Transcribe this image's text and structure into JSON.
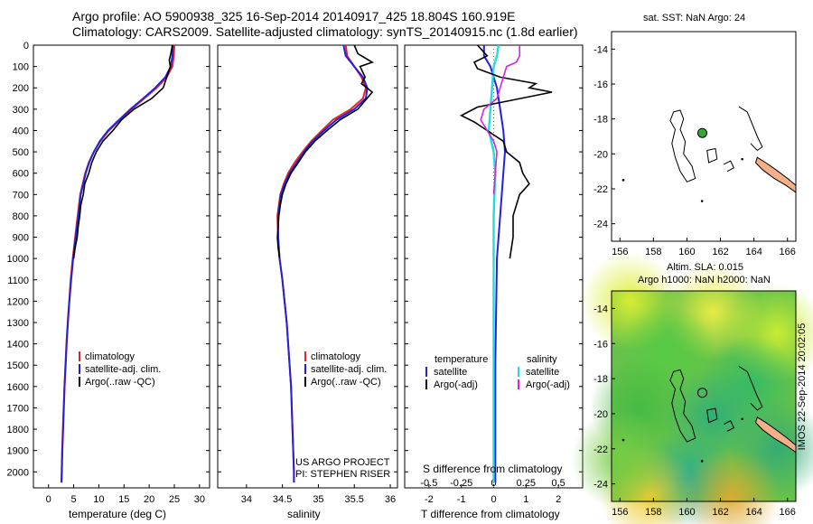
{
  "header": {
    "line1": "Argo profile: AO 5900938_325 16-Sep-2014 20140917_425 18.804S 160.919E",
    "line2": "Climatology: CARS2009. Satellite-adjusted climatology: synTS_20140915.nc (1.8d earlier)"
  },
  "colors": {
    "climatology": "#e8222a",
    "satellite": "#2222dd",
    "argo": "#000000",
    "sat_s": "#22dddd",
    "argo_s": "#dd22dd",
    "reef": "#f5b08a",
    "float": "#33aa33"
  },
  "chart_data": [
    {
      "type": "line",
      "xlabel": "temperature (deg C)",
      "ylabel": "",
      "xlim": [
        -3,
        32
      ],
      "ylim": [
        2075,
        0
      ],
      "xticks": [
        0,
        5,
        10,
        15,
        20,
        25,
        30
      ],
      "yticks": [
        0,
        100,
        200,
        300,
        400,
        500,
        600,
        700,
        800,
        900,
        1000,
        1100,
        1200,
        1300,
        1400,
        1500,
        1600,
        1700,
        1800,
        1900,
        2000
      ],
      "legend": [
        "climatology",
        "satellite-adj. clim.",
        "Argo(..raw -QC)"
      ],
      "series": [
        {
          "name": "climatology",
          "points": [
            [
              25,
              0
            ],
            [
              24.9,
              50
            ],
            [
              24.6,
              100
            ],
            [
              23.5,
              150
            ],
            [
              21.5,
              200
            ],
            [
              19,
              250
            ],
            [
              16.5,
              300
            ],
            [
              14.2,
              350
            ],
            [
              12,
              400
            ],
            [
              10.3,
              450
            ],
            [
              9,
              500
            ],
            [
              8,
              550
            ],
            [
              7.3,
              600
            ],
            [
              6.8,
              650
            ],
            [
              6.3,
              700
            ],
            [
              5.8,
              800
            ],
            [
              5.3,
              900
            ],
            [
              4.8,
              1000
            ],
            [
              4.4,
              1100
            ],
            [
              4.1,
              1200
            ],
            [
              3.8,
              1300
            ],
            [
              3.55,
              1400
            ],
            [
              3.35,
              1500
            ],
            [
              3.15,
              1600
            ],
            [
              3.0,
              1700
            ],
            [
              2.85,
              1800
            ],
            [
              2.7,
              1900
            ],
            [
              2.6,
              2000
            ],
            [
              2.55,
              2050
            ]
          ]
        },
        {
          "name": "satellite-adj. clim.",
          "points": [
            [
              24.7,
              0
            ],
            [
              24.6,
              50
            ],
            [
              24.3,
              100
            ],
            [
              23.2,
              150
            ],
            [
              21.2,
              200
            ],
            [
              18.8,
              250
            ],
            [
              16.3,
              300
            ],
            [
              14,
              350
            ],
            [
              11.8,
              400
            ],
            [
              10.2,
              450
            ],
            [
              9,
              500
            ],
            [
              8.1,
              550
            ],
            [
              7.4,
              600
            ],
            [
              6.9,
              650
            ],
            [
              6.4,
              700
            ],
            [
              5.9,
              800
            ],
            [
              5.4,
              900
            ],
            [
              4.9,
              1000
            ],
            [
              4.5,
              1100
            ],
            [
              4.15,
              1200
            ],
            [
              3.85,
              1300
            ],
            [
              3.6,
              1400
            ],
            [
              3.4,
              1500
            ],
            [
              3.2,
              1600
            ],
            [
              3.05,
              1700
            ],
            [
              2.9,
              1800
            ],
            [
              2.75,
              1900
            ],
            [
              2.65,
              2000
            ],
            [
              2.6,
              2050
            ]
          ]
        },
        {
          "name": "Argo(..raw -QC)",
          "points": [
            [
              24.6,
              0
            ],
            [
              24.3,
              40
            ],
            [
              24.0,
              70
            ],
            [
              24.2,
              100
            ],
            [
              23.5,
              150
            ],
            [
              22.8,
              200
            ],
            [
              20.5,
              250
            ],
            [
              17,
              300
            ],
            [
              14.5,
              350
            ],
            [
              12.8,
              400
            ],
            [
              10.8,
              450
            ],
            [
              9.5,
              500
            ],
            [
              8.6,
              550
            ],
            [
              8.0,
              600
            ],
            [
              7.2,
              650
            ],
            [
              6.9,
              700
            ],
            [
              6.4,
              750
            ],
            [
              6.2,
              800
            ],
            [
              5.9,
              850
            ],
            [
              5.7,
              900
            ],
            [
              5.3,
              950
            ],
            [
              5.0,
              1000
            ]
          ]
        }
      ]
    },
    {
      "type": "line",
      "xlabel": "salinity",
      "ylabel": "",
      "xlim": [
        33.6,
        36.1
      ],
      "ylim": [
        2075,
        0
      ],
      "xticks": [
        34,
        34.5,
        35,
        35.5,
        36
      ],
      "yticks": [],
      "legend": [
        "climatology",
        "satellite-adj. clim.",
        "Argo(..raw -QC)"
      ],
      "annotations": [
        "US ARGO PROJECT",
        "PI: STEPHEN RISER"
      ],
      "series": [
        {
          "name": "climatology",
          "points": [
            [
              35.38,
              0
            ],
            [
              35.4,
              50
            ],
            [
              35.5,
              100
            ],
            [
              35.6,
              150
            ],
            [
              35.66,
              200
            ],
            [
              35.62,
              250
            ],
            [
              35.45,
              300
            ],
            [
              35.2,
              350
            ],
            [
              35.05,
              400
            ],
            [
              34.9,
              450
            ],
            [
              34.78,
              500
            ],
            [
              34.67,
              550
            ],
            [
              34.58,
              600
            ],
            [
              34.52,
              650
            ],
            [
              34.47,
              700
            ],
            [
              34.43,
              800
            ],
            [
              34.44,
              900
            ],
            [
              34.46,
              1000
            ],
            [
              34.5,
              1100
            ],
            [
              34.53,
              1200
            ],
            [
              34.56,
              1300
            ],
            [
              34.58,
              1400
            ],
            [
              34.6,
              1500
            ],
            [
              34.62,
              1600
            ],
            [
              34.63,
              1700
            ],
            [
              34.64,
              1800
            ],
            [
              34.65,
              1900
            ],
            [
              34.66,
              2000
            ],
            [
              34.66,
              2050
            ]
          ]
        },
        {
          "name": "satellite-adj. clim.",
          "points": [
            [
              35.35,
              0
            ],
            [
              35.38,
              50
            ],
            [
              35.5,
              100
            ],
            [
              35.62,
              150
            ],
            [
              35.68,
              200
            ],
            [
              35.66,
              250
            ],
            [
              35.5,
              300
            ],
            [
              35.25,
              350
            ],
            [
              35.08,
              400
            ],
            [
              34.92,
              450
            ],
            [
              34.8,
              500
            ],
            [
              34.7,
              550
            ],
            [
              34.6,
              600
            ],
            [
              34.53,
              650
            ],
            [
              34.48,
              700
            ],
            [
              34.44,
              800
            ],
            [
              34.44,
              900
            ],
            [
              34.46,
              1000
            ],
            [
              34.5,
              1100
            ],
            [
              34.53,
              1200
            ],
            [
              34.56,
              1300
            ],
            [
              34.58,
              1400
            ],
            [
              34.6,
              1500
            ],
            [
              34.62,
              1600
            ],
            [
              34.63,
              1700
            ],
            [
              34.64,
              1800
            ],
            [
              34.65,
              1900
            ],
            [
              34.66,
              2000
            ],
            [
              34.66,
              2050
            ]
          ]
        },
        {
          "name": "Argo(..raw -QC)",
          "points": [
            [
              35.5,
              0
            ],
            [
              35.55,
              40
            ],
            [
              35.75,
              80
            ],
            [
              35.58,
              100
            ],
            [
              35.65,
              150
            ],
            [
              35.6,
              180
            ],
            [
              35.75,
              220
            ],
            [
              35.65,
              260
            ],
            [
              35.55,
              300
            ],
            [
              35.3,
              350
            ],
            [
              35.12,
              400
            ],
            [
              34.95,
              450
            ],
            [
              34.82,
              500
            ],
            [
              34.72,
              550
            ],
            [
              34.62,
              600
            ],
            [
              34.55,
              650
            ],
            [
              34.5,
              700
            ],
            [
              34.47,
              750
            ],
            [
              34.45,
              800
            ],
            [
              34.44,
              850
            ],
            [
              34.43,
              900
            ],
            [
              34.44,
              950
            ],
            [
              34.46,
              1000
            ]
          ]
        }
      ]
    },
    {
      "type": "line",
      "xlabel": "T difference from climatology",
      "xlabel2": "S difference from climatology",
      "xlim": [
        -2.75,
        2.75
      ],
      "ylim": [
        2075,
        0
      ],
      "xticks": [
        -2,
        -1,
        0,
        1,
        2
      ],
      "xticks2": [
        "-0.5",
        "-0.25",
        "0",
        "0.25",
        "0.5"
      ],
      "legend_left_title": "temperature",
      "legend_right_title": "salinity",
      "legend": [
        "satellite",
        "Argo(-adj)",
        "satellite",
        "Argo(-adj)"
      ],
      "series": [
        {
          "name": "T satellite",
          "points": [
            [
              -0.3,
              0
            ],
            [
              -0.3,
              50
            ],
            [
              -0.1,
              100
            ],
            [
              0.1,
              200
            ],
            [
              0.2,
              300
            ],
            [
              0.3,
              400
            ],
            [
              0.35,
              500
            ],
            [
              0.3,
              600
            ],
            [
              0.2,
              800
            ],
            [
              0.1,
              1000
            ],
            [
              0.05,
              1500
            ],
            [
              0.05,
              2050
            ]
          ]
        },
        {
          "name": "S satellite",
          "points": [
            [
              0.15,
              0
            ],
            [
              0.1,
              50
            ],
            [
              0.0,
              100
            ],
            [
              -0.05,
              200
            ],
            [
              -0.1,
              300
            ],
            [
              -0.15,
              400
            ],
            [
              0.0,
              500
            ],
            [
              0.05,
              600
            ],
            [
              0,
              800
            ],
            [
              0,
              1000
            ],
            [
              0,
              1500
            ],
            [
              0,
              2050
            ]
          ]
        },
        {
          "name": "T Argo(-adj)",
          "points": [
            [
              -0.5,
              0
            ],
            [
              -0.2,
              50
            ],
            [
              -0.6,
              80
            ],
            [
              -0.5,
              110
            ],
            [
              0.2,
              150
            ],
            [
              1.3,
              180
            ],
            [
              1.1,
              200
            ],
            [
              1.8,
              220
            ],
            [
              0.5,
              260
            ],
            [
              -0.5,
              290
            ],
            [
              -1.0,
              330
            ],
            [
              -0.6,
              360
            ],
            [
              -0.2,
              400
            ],
            [
              0.3,
              450
            ],
            [
              0.4,
              500
            ],
            [
              0.8,
              550
            ],
            [
              0.9,
              600
            ],
            [
              1.1,
              650
            ],
            [
              0.8,
              700
            ],
            [
              0.6,
              800
            ],
            [
              0.6,
              900
            ],
            [
              0.5,
              1000
            ]
          ]
        },
        {
          "name": "S Argo(-adj)",
          "points": [
            [
              0.8,
              0
            ],
            [
              0.8,
              50
            ],
            [
              0.7,
              80
            ],
            [
              0.4,
              100
            ],
            [
              0.3,
              150
            ],
            [
              0.2,
              200
            ],
            [
              0.1,
              250
            ],
            [
              -0.3,
              300
            ],
            [
              -0.4,
              350
            ],
            [
              -0.2,
              400
            ],
            [
              0.0,
              450
            ],
            [
              0.1,
              500
            ],
            [
              0.05,
              600
            ],
            [
              0,
              700
            ]
          ]
        }
      ]
    },
    {
      "type": "map",
      "title": "sat. SST: NaN Argo: 24",
      "xticks": [
        "156",
        "158",
        "160",
        "162",
        "164",
        "166"
      ],
      "yticks": [
        "-14",
        "-16",
        "-18",
        "-20",
        "-22",
        "-24"
      ],
      "float_position": {
        "lon": 160.919,
        "lat": -18.804
      }
    },
    {
      "type": "heatmap",
      "title_line1": "Altim. SLA: 0.015",
      "title_line2": "Argo h1000: NaN h2000: NaN",
      "xticks": [
        "156",
        "158",
        "160",
        "162",
        "164",
        "166"
      ],
      "yticks": [
        "-14",
        "-16",
        "-18",
        "-20",
        "-22",
        "-24"
      ],
      "float_position": {
        "lon": 160.919,
        "lat": -18.804
      }
    }
  ],
  "footer": {
    "stamp": "IMOS 22-Sep-2014 20:02:05"
  }
}
